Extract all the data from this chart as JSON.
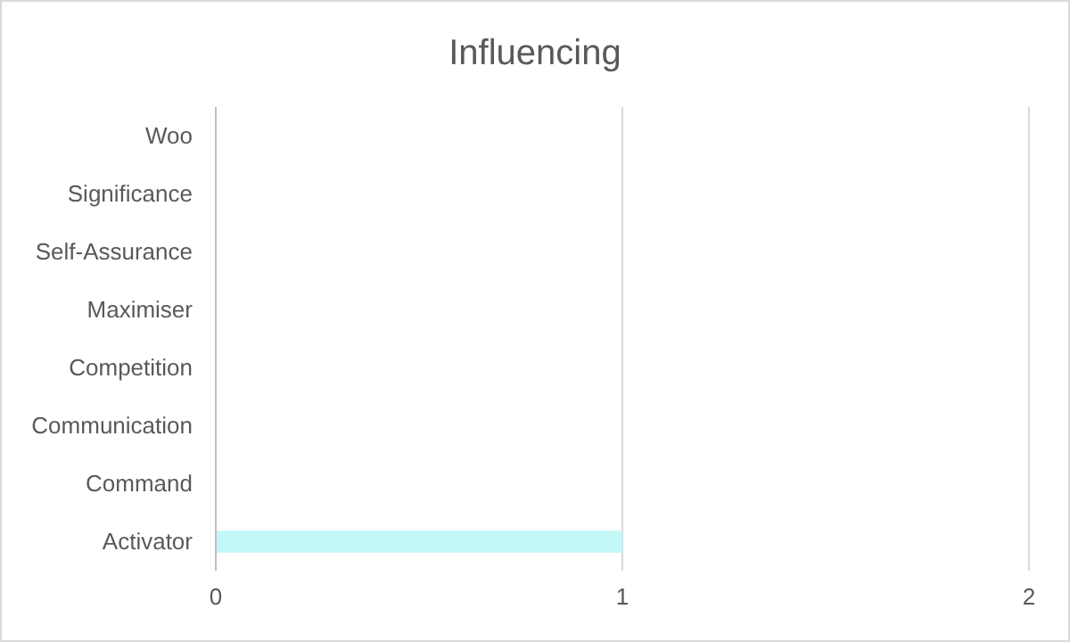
{
  "chart_data": {
    "type": "bar",
    "orientation": "horizontal",
    "title": "Influencing",
    "categories": [
      "Woo",
      "Significance",
      "Self-Assurance",
      "Maximiser",
      "Competition",
      "Communication",
      "Command",
      "Activator"
    ],
    "values": [
      0,
      0,
      0,
      0,
      0,
      0,
      0,
      1
    ],
    "color": "#c4f8f8",
    "xlim": [
      0,
      2
    ],
    "xticks": [
      0,
      1,
      2
    ],
    "grid": "x"
  }
}
